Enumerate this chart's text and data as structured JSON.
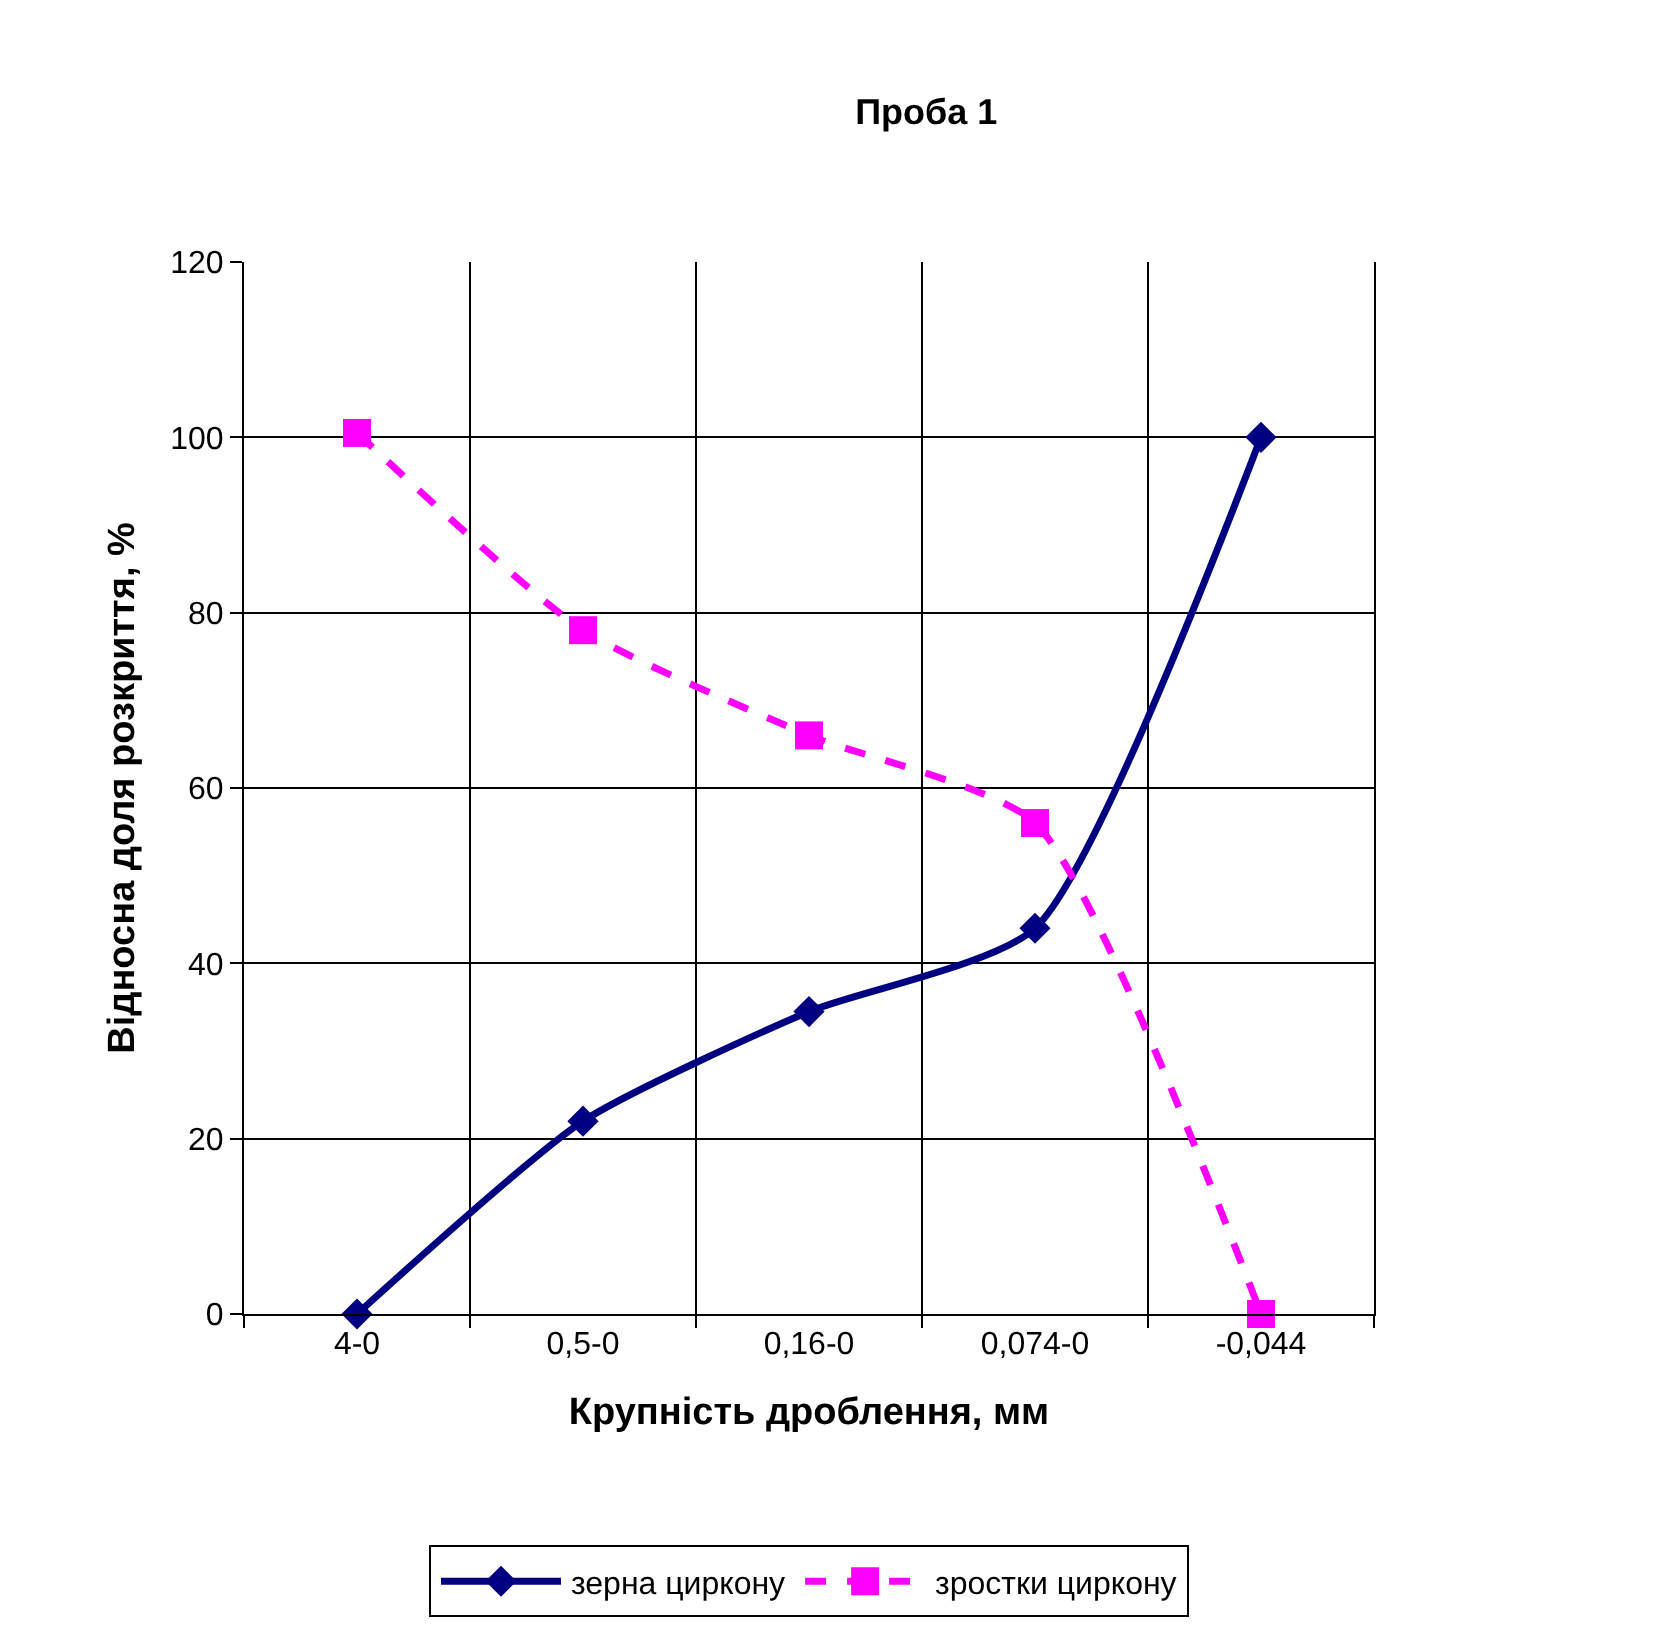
{
  "chart_data": {
    "type": "line",
    "title": "Проба 1",
    "xlabel": "Крупність дроблення, мм",
    "ylabel": "Відносна доля розкриття, %",
    "categories": [
      "4-0",
      "0,5-0",
      "0,16-0",
      "0,074-0",
      "-0,044"
    ],
    "series": [
      {
        "name": "зерна циркону",
        "color": "#000080",
        "values": [
          0,
          22,
          34.5,
          44,
          100
        ],
        "marker": "diamond",
        "line_style": "solid"
      },
      {
        "name": "зростки циркону",
        "color": "#ff00ff",
        "values": [
          100.5,
          78,
          66,
          56,
          0
        ],
        "marker": "square",
        "line_style": "dashed"
      }
    ],
    "ylim": [
      0,
      120
    ],
    "yticks": [
      0,
      20,
      40,
      60,
      80,
      100,
      120
    ],
    "grid": true,
    "legend": "bottom"
  }
}
